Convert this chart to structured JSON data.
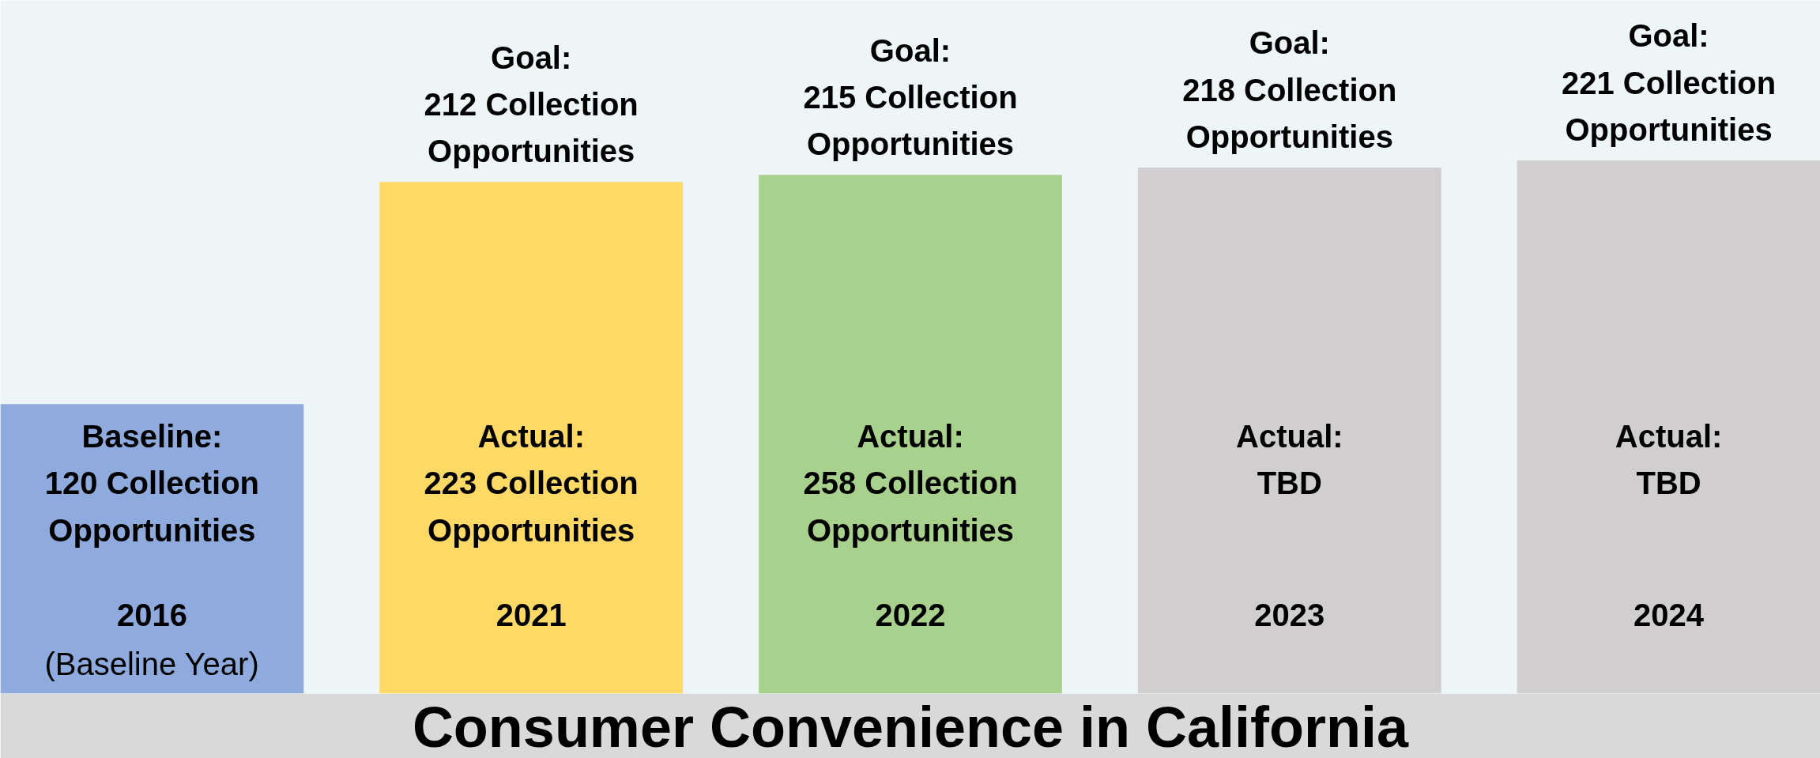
{
  "chart_data": {
    "type": "bar",
    "title": "Consumer Convenience in California",
    "categories": [
      "2016\n(Baseline Year)",
      "2021",
      "2022",
      "2023",
      "2024"
    ],
    "values": [
      120,
      212,
      215,
      218,
      221
    ],
    "colors": [
      "#8faadc",
      "#ffd966",
      "#a9d18e",
      "#d0cece",
      "#d0cece"
    ],
    "value_labels": [
      "Baseline:\n120 Collection Opportunities",
      "Goal:\n212 Collection Opportunities",
      "Goal:\n215 Collection Opportunities",
      "Goal:\n218 Collection Opportunities",
      "Goal:\n221 Collection Opportunities"
    ],
    "annotations": [
      "Actual:\n223 Collection Opportunities",
      "Actual:\n258 Collection Opportunities",
      "Actual:\nTBD",
      "Actual:\nTBD"
    ]
  }
}
